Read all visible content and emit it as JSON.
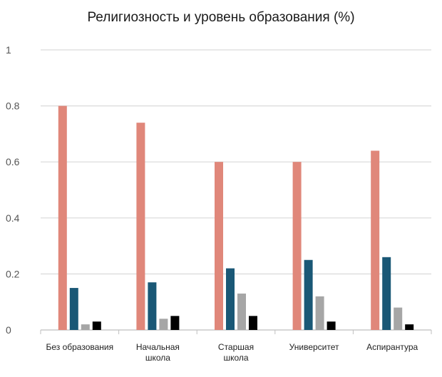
{
  "chart_data": {
    "type": "bar",
    "title": "Религиозность и уровень образования (%)",
    "xlabel": "",
    "ylabel": "",
    "ylim": [
      0,
      1
    ],
    "yticks": [
      "0",
      "0.2",
      "0.4",
      "0.6",
      "0.8",
      "1"
    ],
    "ytick_values": [
      0,
      0.2,
      0.4,
      0.6,
      0.8,
      1
    ],
    "categories": [
      [
        "Без образования"
      ],
      [
        "Начальная",
        "школа"
      ],
      [
        "Старшая",
        "школа"
      ],
      [
        "Университет"
      ],
      [
        "Аспирантура"
      ]
    ],
    "series": [
      {
        "values": [
          0.8,
          0.74,
          0.6,
          0.6,
          0.64
        ],
        "color": "#e0877a"
      },
      {
        "values": [
          0.15,
          0.17,
          0.22,
          0.25,
          0.26
        ],
        "color": "#1a5876"
      },
      {
        "values": [
          0.02,
          0.04,
          0.13,
          0.12,
          0.08
        ],
        "color": "#a6a6a6"
      },
      {
        "values": [
          0.03,
          0.05,
          0.05,
          0.03,
          0.02
        ],
        "color": "#000000"
      }
    ],
    "grid": true,
    "legend": "none"
  }
}
